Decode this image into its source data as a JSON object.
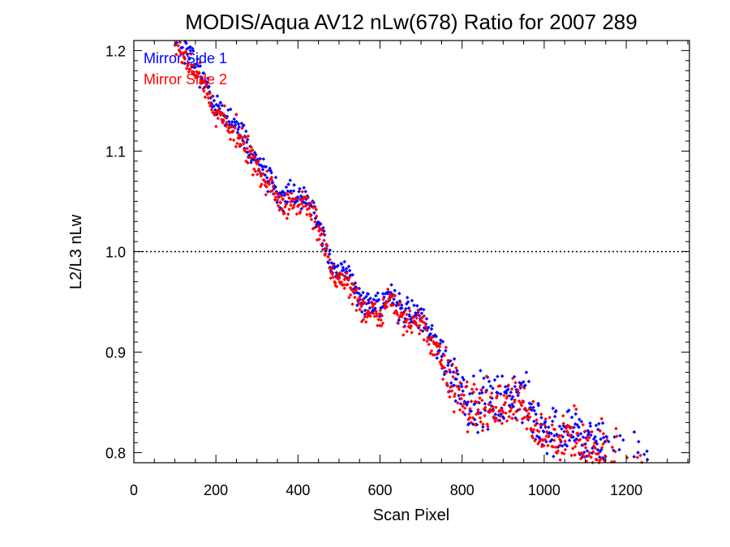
{
  "chart_data": {
    "type": "scatter",
    "title": "MODIS/Aqua AV12 nLw(678) Ratio for 2007 289",
    "xlabel": "Scan Pixel",
    "ylabel": "L2/L3 nLw",
    "xlim": [
      0,
      1354
    ],
    "ylim": [
      0.79,
      1.21
    ],
    "x_ticks": [
      0,
      200,
      400,
      600,
      800,
      1000,
      1200
    ],
    "x_tick_labels": [
      "0",
      "200",
      "400",
      "600",
      "800",
      "1000",
      "1200"
    ],
    "y_ticks": [
      0.8,
      0.9,
      1.0,
      1.1,
      1.2
    ],
    "y_tick_labels": [
      "0.8",
      "0.9",
      "1.0",
      "1.1",
      "1.2"
    ],
    "reference_line": {
      "y": 1.0,
      "style": "dotted"
    },
    "legend_position": "top-left",
    "trend": {
      "x": [
        100,
        150,
        200,
        250,
        300,
        340,
        360,
        400,
        430,
        470,
        490,
        520,
        560,
        600,
        620,
        660,
        700,
        740,
        780,
        820,
        860,
        900,
        940,
        980,
        1020,
        1060,
        1100,
        1150,
        1200,
        1250
      ],
      "y": [
        1.21,
        1.18,
        1.14,
        1.12,
        1.085,
        1.06,
        1.045,
        1.05,
        1.045,
        1.0,
        0.975,
        0.97,
        0.945,
        0.935,
        0.95,
        0.935,
        0.93,
        0.9,
        0.87,
        0.845,
        0.845,
        0.845,
        0.855,
        0.825,
        0.815,
        0.82,
        0.805,
        0.8,
        0.795,
        0.79
      ]
    },
    "series": [
      {
        "name": "Mirror Side 1",
        "color": "#0000ff",
        "offset": 0.006,
        "seed": 17
      },
      {
        "name": "Mirror Side 2",
        "color": "#ff0000",
        "offset": -0.002,
        "seed": 91
      }
    ]
  }
}
